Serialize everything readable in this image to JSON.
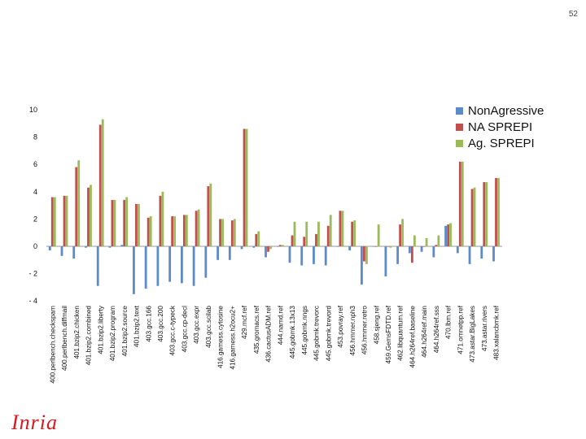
{
  "page": {
    "number": "52"
  },
  "logo": {
    "text": "Inria"
  },
  "colors": {
    "s0": "#5b8bc9",
    "s1": "#c0504d",
    "s2": "#9bbb59",
    "axis": "#999999",
    "text": "#111111"
  },
  "chart_data": {
    "type": "bar",
    "title": "",
    "xlabel": "",
    "ylabel": "",
    "ylim": [
      -4,
      10
    ],
    "yticks": [
      10,
      8,
      6,
      4,
      2,
      0,
      -2,
      -4
    ],
    "legend_position": "top-right",
    "categories": [
      "400.perlbench.checkspam",
      "400.perlbench.diffmail",
      "401.bzip2.chicken",
      "401.bzip2.combined",
      "401.bzip2.liberty",
      "401.bzip2.program",
      "401.bzip2.source",
      "401.bzip2.text",
      "403.gcc.166",
      "403.gcc.200",
      "403.gcc.c-typeck",
      "403.gcc.cp-decl",
      "403.gcc.expr",
      "403.gcc.scilab",
      "416.gamess.cytosine",
      "416.gamess.h2ocu2+",
      "429.mcf.ref",
      "435.gromacs.ref",
      "436.cactusADM.ref",
      "444.namd.ref",
      "445.gobmk.13x13",
      "445.gobmk.nngs",
      "445.gobmk.trevorc",
      "445.gobmk.trevord",
      "453.povray.ref",
      "456.hmmer.nph3",
      "456.hmmer.retro",
      "458.sjeng.ref",
      "459.GemsFDTD.ref",
      "462.libquantum.ref",
      "464.h264ref.baseline",
      "464.h264ref.main",
      "464.h264ref.sss",
      "470.lbm.ref",
      "471.omnetpp.ref",
      "473.astar.BigLakes",
      "473.astar.rivers",
      "483.xalancbmk.ref"
    ],
    "series": [
      {
        "name": "NonAgressive",
        "values": [
          -0.3,
          -0.7,
          -0.9,
          -0.1,
          -2.9,
          -0.1,
          0.1,
          -3.5,
          -3.1,
          -2.9,
          -2.6,
          -2.7,
          -2.9,
          -2.3,
          -1.0,
          -1.0,
          -0.2,
          -0.1,
          -0.8,
          0.0,
          -1.2,
          -1.4,
          -1.3,
          -1.4,
          0.0,
          -0.3,
          -2.8,
          0.0,
          -2.2,
          -1.3,
          -0.5,
          -0.4,
          -0.8,
          1.5,
          -0.5,
          -1.3,
          -0.9,
          -1.1
        ]
      },
      {
        "name": "NA SPREPI",
        "values": [
          3.6,
          3.7,
          5.8,
          4.3,
          8.9,
          3.4,
          3.4,
          3.1,
          2.1,
          3.7,
          2.2,
          2.3,
          2.6,
          4.4,
          2.0,
          1.9,
          8.6,
          0.9,
          -0.4,
          0.1,
          0.8,
          0.7,
          0.9,
          1.5,
          2.6,
          1.8,
          -1.1,
          0.0,
          0.0,
          1.6,
          -1.2,
          0.0,
          0.1,
          1.6,
          6.2,
          4.2,
          4.7,
          5.0
        ]
      },
      {
        "name": "Ag. SPREPI",
        "values": [
          3.6,
          3.7,
          6.3,
          4.5,
          9.3,
          3.4,
          3.6,
          3.1,
          2.2,
          4.0,
          2.2,
          2.3,
          2.7,
          4.6,
          2.0,
          2.0,
          8.6,
          1.1,
          -0.2,
          0.1,
          1.8,
          1.8,
          1.8,
          2.3,
          2.6,
          1.9,
          -1.3,
          1.6,
          -0.1,
          2.0,
          0.8,
          0.6,
          0.8,
          1.7,
          6.2,
          4.3,
          4.7,
          5.0
        ]
      }
    ]
  }
}
